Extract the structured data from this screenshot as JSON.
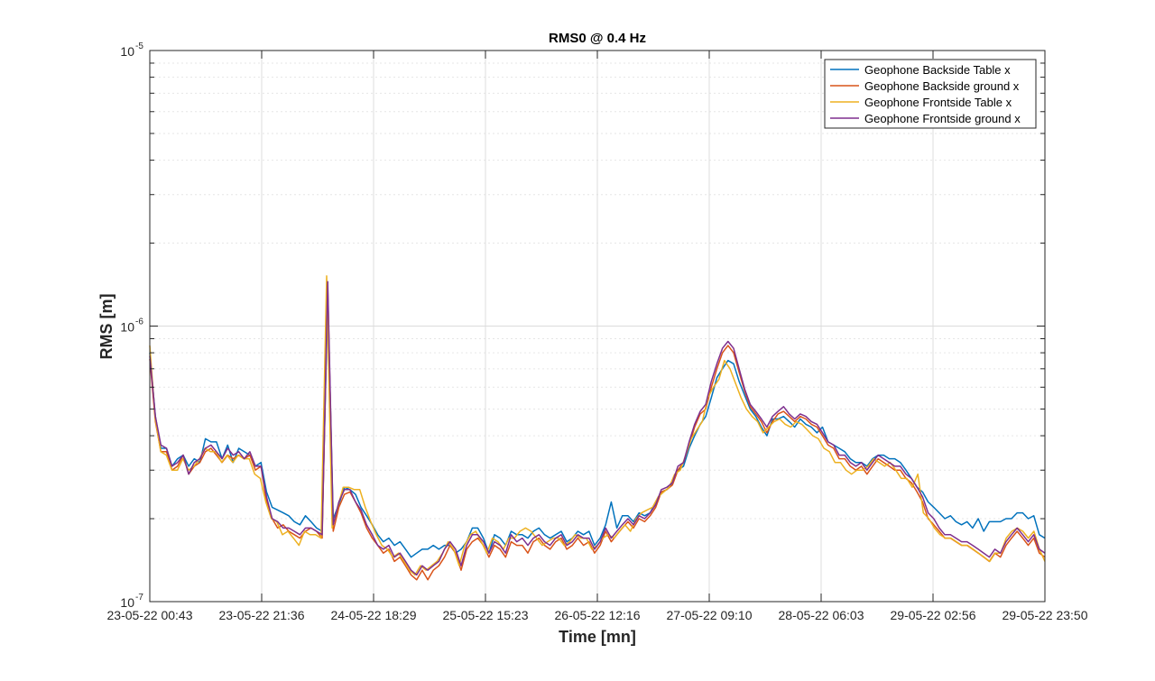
{
  "chart_data": {
    "type": "line",
    "title": "RMS0 @ 0.4 Hz",
    "xlabel": "Time [mn]",
    "ylabel": "RMS [m]",
    "y_scale": "log",
    "ylim": [
      1e-07,
      1e-05
    ],
    "y_ticks": [
      {
        "value": 1e-07,
        "base": "10",
        "exp": "-7"
      },
      {
        "value": 1e-06,
        "base": "10",
        "exp": "-6"
      },
      {
        "value": 1e-05,
        "base": "10",
        "exp": "-5"
      }
    ],
    "xlim": [
      "23-05-22 00:43",
      "29-05-22 23:50"
    ],
    "x_ticks": [
      "23-05-22 00:43",
      "23-05-22 21:36",
      "24-05-22 18:29",
      "25-05-22 15:23",
      "26-05-22 12:16",
      "27-05-22 09:10",
      "28-05-22 06:03",
      "29-05-22 02:56",
      "29-05-22 23:50"
    ],
    "grid": true,
    "legend_position": "top-right",
    "series": [
      {
        "name": "Geophone Backside Table x",
        "color": "#0072BD",
        "y": [
          8e-07,
          4.7e-07,
          3.6e-07,
          3.6e-07,
          3.1e-07,
          3.3e-07,
          3.4e-07,
          3.1e-07,
          3.3e-07,
          3.2e-07,
          3.9e-07,
          3.8e-07,
          3.8e-07,
          3.3e-07,
          3.7e-07,
          3.2e-07,
          3.6e-07,
          3.5e-07,
          3.4e-07,
          3.1e-07,
          3.2e-07,
          2.5e-07,
          2.2e-07,
          2.15e-07,
          2.1e-07,
          2.05e-07,
          1.95e-07,
          1.9e-07,
          2.05e-07,
          1.95e-07,
          1.85e-07,
          1.8e-07,
          1.25e-06,
          2e-07,
          2.25e-07,
          2.6e-07,
          2.55e-07,
          2.45e-07,
          2.2e-07,
          2.05e-07,
          1.9e-07,
          1.75e-07,
          1.65e-07,
          1.7e-07,
          1.6e-07,
          1.65e-07,
          1.55e-07,
          1.45e-07,
          1.5e-07,
          1.55e-07,
          1.55e-07,
          1.6e-07,
          1.55e-07,
          1.6e-07,
          1.6e-07,
          1.5e-07,
          1.55e-07,
          1.65e-07,
          1.85e-07,
          1.85e-07,
          1.7e-07,
          1.5e-07,
          1.75e-07,
          1.7e-07,
          1.6e-07,
          1.8e-07,
          1.75e-07,
          1.75e-07,
          1.7e-07,
          1.8e-07,
          1.85e-07,
          1.75e-07,
          1.7e-07,
          1.75e-07,
          1.8e-07,
          1.65e-07,
          1.7e-07,
          1.8e-07,
          1.75e-07,
          1.8e-07,
          1.6e-07,
          1.7e-07,
          1.9e-07,
          2.3e-07,
          1.85e-07,
          2.05e-07,
          2.05e-07,
          1.95e-07,
          2.1e-07,
          2.05e-07,
          2.1e-07,
          2.3e-07,
          2.5e-07,
          2.55e-07,
          2.7e-07,
          3e-07,
          3.1e-07,
          3.6e-07,
          4e-07,
          4.4e-07,
          4.7e-07,
          5.5e-07,
          6.5e-07,
          7e-07,
          7.5e-07,
          7.3e-07,
          6.3e-07,
          5.6e-07,
          5e-07,
          4.7e-07,
          4.3e-07,
          4e-07,
          4.6e-07,
          4.6e-07,
          4.7e-07,
          4.5e-07,
          4.3e-07,
          4.6e-07,
          4.4e-07,
          4.3e-07,
          4.1e-07,
          4.3e-07,
          3.8e-07,
          3.7e-07,
          3.6e-07,
          3.5e-07,
          3.3e-07,
          3.2e-07,
          3.2e-07,
          3.1e-07,
          3.3e-07,
          3.4e-07,
          3.4e-07,
          3.3e-07,
          3.3e-07,
          3.2e-07,
          3e-07,
          2.8e-07,
          2.6e-07,
          2.5e-07,
          2.3e-07,
          2.2e-07,
          2.1e-07,
          2e-07,
          2.05e-07,
          1.95e-07,
          1.9e-07,
          1.95e-07,
          1.85e-07,
          2e-07,
          1.8e-07,
          1.95e-07,
          1.95e-07,
          1.95e-07,
          2e-07,
          2e-07,
          2.1e-07,
          2.1e-07,
          2e-07,
          2.05e-07,
          1.75e-07,
          1.7e-07
        ]
      },
      {
        "name": "Geophone Backside ground x",
        "color": "#D95319",
        "y": [
          7.6e-07,
          4.5e-07,
          3.5e-07,
          3.5e-07,
          3e-07,
          3.1e-07,
          3.4e-07,
          2.9e-07,
          3.1e-07,
          3.2e-07,
          3.5e-07,
          3.6e-07,
          3.4e-07,
          3.2e-07,
          3.4e-07,
          3.3e-07,
          3.4e-07,
          3.3e-07,
          3.4e-07,
          3e-07,
          3.1e-07,
          2.3e-07,
          2e-07,
          1.85e-07,
          1.9e-07,
          1.8e-07,
          1.75e-07,
          1.7e-07,
          1.8e-07,
          1.85e-07,
          1.8e-07,
          1.7e-07,
          1.38e-06,
          1.8e-07,
          2.2e-07,
          2.45e-07,
          2.5e-07,
          2.3e-07,
          2.1e-07,
          1.85e-07,
          1.7e-07,
          1.6e-07,
          1.5e-07,
          1.55e-07,
          1.4e-07,
          1.45e-07,
          1.35e-07,
          1.25e-07,
          1.2e-07,
          1.3e-07,
          1.2e-07,
          1.3e-07,
          1.35e-07,
          1.45e-07,
          1.6e-07,
          1.5e-07,
          1.3e-07,
          1.55e-07,
          1.65e-07,
          1.7e-07,
          1.6e-07,
          1.45e-07,
          1.6e-07,
          1.55e-07,
          1.45e-07,
          1.65e-07,
          1.6e-07,
          1.6e-07,
          1.5e-07,
          1.65e-07,
          1.7e-07,
          1.6e-07,
          1.55e-07,
          1.65e-07,
          1.7e-07,
          1.55e-07,
          1.6e-07,
          1.7e-07,
          1.6e-07,
          1.65e-07,
          1.5e-07,
          1.6e-07,
          1.8e-07,
          1.65e-07,
          1.75e-07,
          1.85e-07,
          1.95e-07,
          1.85e-07,
          2e-07,
          1.95e-07,
          2.05e-07,
          2.2e-07,
          2.5e-07,
          2.55e-07,
          2.65e-07,
          3e-07,
          3.2e-07,
          3.7e-07,
          4.3e-07,
          4.8e-07,
          5e-07,
          6e-07,
          7e-07,
          8e-07,
          8.5e-07,
          8e-07,
          6.8e-07,
          5.8e-07,
          5.1e-07,
          4.8e-07,
          4.5e-07,
          4.1e-07,
          4.5e-07,
          4.8e-07,
          4.9e-07,
          4.7e-07,
          4.5e-07,
          4.7e-07,
          4.6e-07,
          4.4e-07,
          4.3e-07,
          4e-07,
          3.7e-07,
          3.6e-07,
          3.3e-07,
          3.3e-07,
          3.1e-07,
          3e-07,
          3.1e-07,
          2.9e-07,
          3.1e-07,
          3.3e-07,
          3.2e-07,
          3.1e-07,
          3e-07,
          3e-07,
          2.8e-07,
          2.7e-07,
          2.5e-07,
          2.3e-07,
          2e-07,
          1.9e-07,
          1.8e-07,
          1.7e-07,
          1.7e-07,
          1.65e-07,
          1.6e-07,
          1.6e-07,
          1.55e-07,
          1.5e-07,
          1.45e-07,
          1.4e-07,
          1.5e-07,
          1.45e-07,
          1.6e-07,
          1.7e-07,
          1.8e-07,
          1.7e-07,
          1.6e-07,
          1.7e-07,
          1.5e-07,
          1.45e-07
        ]
      },
      {
        "name": "Geophone Frontside Table x",
        "color": "#EDB120",
        "y": [
          8.5e-07,
          4.6e-07,
          3.5e-07,
          3.4e-07,
          3e-07,
          3e-07,
          3.3e-07,
          3e-07,
          3.1e-07,
          3.3e-07,
          3.6e-07,
          3.5e-07,
          3.5e-07,
          3.2e-07,
          3.4e-07,
          3.2e-07,
          3.4e-07,
          3.3e-07,
          3.3e-07,
          2.9e-07,
          2.8e-07,
          2.3e-07,
          2e-07,
          1.95e-07,
          1.75e-07,
          1.8e-07,
          1.7e-07,
          1.6e-07,
          1.8e-07,
          1.75e-07,
          1.75e-07,
          1.7e-07,
          1.52e-06,
          1.85e-07,
          2.2e-07,
          2.6e-07,
          2.6e-07,
          2.55e-07,
          2.55e-07,
          2.2e-07,
          1.95e-07,
          1.75e-07,
          1.6e-07,
          1.55e-07,
          1.45e-07,
          1.5e-07,
          1.4e-07,
          1.3e-07,
          1.25e-07,
          1.35e-07,
          1.3e-07,
          1.35e-07,
          1.4e-07,
          1.5e-07,
          1.65e-07,
          1.55e-07,
          1.35e-07,
          1.6e-07,
          1.75e-07,
          1.8e-07,
          1.65e-07,
          1.5e-07,
          1.7e-07,
          1.65e-07,
          1.55e-07,
          1.7e-07,
          1.7e-07,
          1.8e-07,
          1.85e-07,
          1.8e-07,
          1.7e-07,
          1.6e-07,
          1.65e-07,
          1.7e-07,
          1.7e-07,
          1.6e-07,
          1.65e-07,
          1.75e-07,
          1.7e-07,
          1.7e-07,
          1.55e-07,
          1.6e-07,
          1.7e-07,
          1.75e-07,
          1.7e-07,
          1.8e-07,
          1.9e-07,
          1.8e-07,
          2e-07,
          2.1e-07,
          2.15e-07,
          2.2e-07,
          2.4e-07,
          2.5e-07,
          2.6e-07,
          2.9e-07,
          3e-07,
          3.4e-07,
          3.9e-07,
          4.2e-07,
          4.5e-07,
          5.5e-07,
          6e-07,
          6.4e-07,
          7.5e-07,
          7e-07,
          6.2e-07,
          5.5e-07,
          5e-07,
          4.7e-07,
          4.5e-07,
          4.1e-07,
          4.3e-07,
          4.5e-07,
          4.6e-07,
          4.4e-07,
          4.3e-07,
          4.5e-07,
          4.4e-07,
          4.2e-07,
          4e-07,
          3.9e-07,
          3.6e-07,
          3.5e-07,
          3.2e-07,
          3.2e-07,
          3e-07,
          2.9e-07,
          3e-07,
          3e-07,
          3.1e-07,
          3.3e-07,
          3.2e-07,
          3.1e-07,
          3.2e-07,
          3e-07,
          2.8e-07,
          2.8e-07,
          2.6e-07,
          2.9e-07,
          2.1e-07,
          2e-07,
          1.85e-07,
          1.75e-07,
          1.7e-07,
          1.7e-07,
          1.65e-07,
          1.6e-07,
          1.6e-07,
          1.55e-07,
          1.5e-07,
          1.45e-07,
          1.4e-07,
          1.5e-07,
          1.5e-07,
          1.7e-07,
          1.8e-07,
          1.85e-07,
          1.8e-07,
          1.7e-07,
          1.8e-07,
          1.55e-07,
          1.4e-07
        ]
      },
      {
        "name": "Geophone Frontside ground x",
        "color": "#7E2F8E",
        "y": [
          7.8e-07,
          4.7e-07,
          3.7e-07,
          3.6e-07,
          3.1e-07,
          3.2e-07,
          3.4e-07,
          2.9e-07,
          3.2e-07,
          3.3e-07,
          3.6e-07,
          3.7e-07,
          3.5e-07,
          3.3e-07,
          3.6e-07,
          3.4e-07,
          3.5e-07,
          3.3e-07,
          3.5e-07,
          3.1e-07,
          3.1e-07,
          2.4e-07,
          2e-07,
          1.95e-07,
          1.85e-07,
          1.85e-07,
          1.8e-07,
          1.75e-07,
          1.85e-07,
          1.85e-07,
          1.8e-07,
          1.75e-07,
          1.45e-06,
          1.9e-07,
          2.3e-07,
          2.55e-07,
          2.55e-07,
          2.3e-07,
          2.15e-07,
          1.9e-07,
          1.75e-07,
          1.6e-07,
          1.55e-07,
          1.6e-07,
          1.45e-07,
          1.5e-07,
          1.4e-07,
          1.3e-07,
          1.25e-07,
          1.35e-07,
          1.3e-07,
          1.35e-07,
          1.4e-07,
          1.55e-07,
          1.65e-07,
          1.55e-07,
          1.35e-07,
          1.6e-07,
          1.75e-07,
          1.75e-07,
          1.65e-07,
          1.5e-07,
          1.65e-07,
          1.6e-07,
          1.5e-07,
          1.75e-07,
          1.65e-07,
          1.7e-07,
          1.6e-07,
          1.7e-07,
          1.75e-07,
          1.65e-07,
          1.6e-07,
          1.7e-07,
          1.75e-07,
          1.6e-07,
          1.65e-07,
          1.75e-07,
          1.7e-07,
          1.7e-07,
          1.55e-07,
          1.65e-07,
          1.85e-07,
          1.7e-07,
          1.8e-07,
          1.9e-07,
          2e-07,
          1.9e-07,
          2.05e-07,
          2e-07,
          2.1e-07,
          2.25e-07,
          2.55e-07,
          2.6e-07,
          2.7e-07,
          3.1e-07,
          3.2e-07,
          3.8e-07,
          4.4e-07,
          4.9e-07,
          5.2e-07,
          6.3e-07,
          7.3e-07,
          8.3e-07,
          8.8e-07,
          8.3e-07,
          7e-07,
          5.9e-07,
          5.2e-07,
          4.9e-07,
          4.6e-07,
          4.3e-07,
          4.7e-07,
          4.9e-07,
          5.1e-07,
          4.8e-07,
          4.6e-07,
          4.8e-07,
          4.7e-07,
          4.5e-07,
          4.4e-07,
          4.1e-07,
          3.8e-07,
          3.7e-07,
          3.4e-07,
          3.4e-07,
          3.2e-07,
          3.1e-07,
          3.2e-07,
          3e-07,
          3.2e-07,
          3.4e-07,
          3.3e-07,
          3.2e-07,
          3.1e-07,
          3.1e-07,
          2.9e-07,
          2.8e-07,
          2.6e-07,
          2.4e-07,
          2.1e-07,
          2e-07,
          1.85e-07,
          1.75e-07,
          1.75e-07,
          1.7e-07,
          1.65e-07,
          1.65e-07,
          1.6e-07,
          1.55e-07,
          1.5e-07,
          1.45e-07,
          1.55e-07,
          1.5e-07,
          1.65e-07,
          1.75e-07,
          1.85e-07,
          1.75e-07,
          1.65e-07,
          1.75e-07,
          1.55e-07,
          1.5e-07
        ]
      }
    ]
  }
}
